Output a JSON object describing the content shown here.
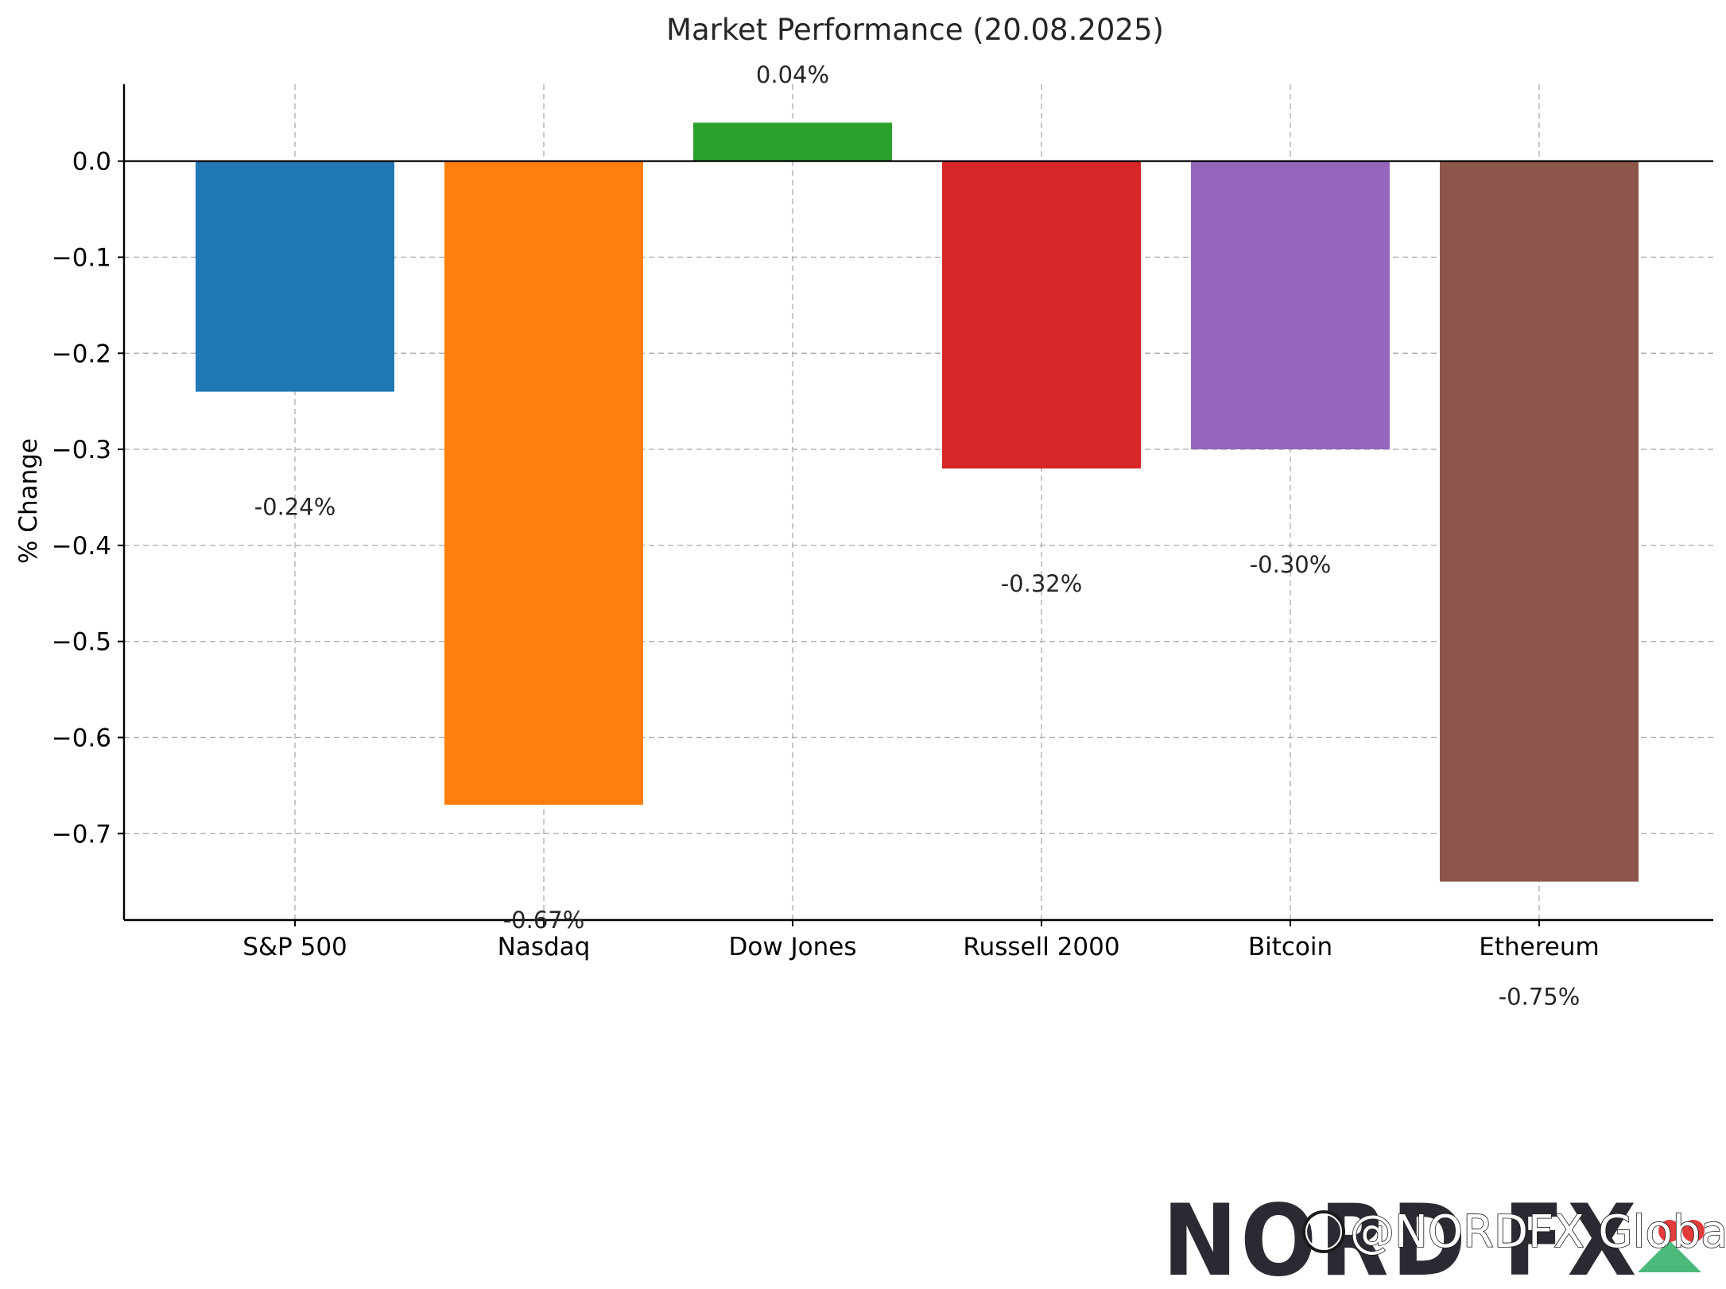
{
  "chart_data": {
    "type": "bar",
    "title": "Market Performance (20.08.2025)",
    "xlabel": "",
    "ylabel": "% Change",
    "categories": [
      "S&P 500",
      "Nasdaq",
      "Dow Jones",
      "Russell 2000",
      "Bitcoin",
      "Ethereum"
    ],
    "values": [
      -0.24,
      -0.67,
      0.04,
      -0.32,
      -0.3,
      -0.75
    ],
    "data_labels": [
      "-0.24%",
      "-0.67%",
      "0.04%",
      "-0.32%",
      "-0.30%",
      "-0.75%"
    ],
    "colors": [
      "#1f77b4",
      "#ff7f0e",
      "#2ca02c",
      "#d62728",
      "#9467bd",
      "#8c564b"
    ],
    "ylim": [
      -0.79,
      0.08
    ],
    "yticks": [
      0.0,
      -0.1,
      -0.2,
      -0.3,
      -0.4,
      -0.5,
      -0.6,
      -0.7
    ],
    "ytick_labels": [
      "0.0",
      "−0.1",
      "−0.2",
      "−0.3",
      "−0.4",
      "−0.5",
      "−0.6",
      "−0.7"
    ],
    "grid": true,
    "legend": "none"
  },
  "watermark": {
    "logo_text": "NORD FX",
    "handle": "@NORDFX Global",
    "icon": "social-handle-icon"
  }
}
